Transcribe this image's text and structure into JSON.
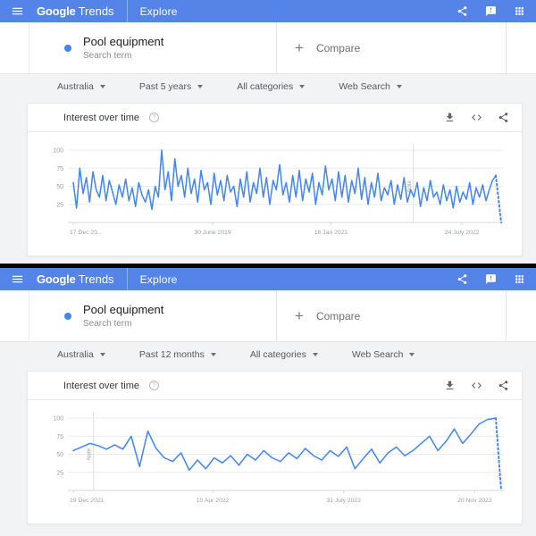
{
  "colors": {
    "header_bg": "#5584e8",
    "accent_blue": "#4285f4",
    "line": "#4285f4",
    "grid": "#e9ebee",
    "axis_line": "#d5d8db",
    "axis_text": "#9aa0a6",
    "note_line": "#dadce0"
  },
  "icons": {
    "menu": "hamburger-icon",
    "share_header": "share-icon",
    "feedback": "feedback-icon",
    "apps": "apps-grid-icon",
    "download": "download-icon",
    "embed": "embed-code-icon",
    "share_chart": "share-icon",
    "help": "help-icon",
    "dropdown": "chevron-down-icon"
  },
  "header": {
    "logo_google": "Google",
    "logo_trends": "Trends",
    "nav_label": "Explore"
  },
  "screens": [
    {
      "search_card": {
        "term": "Pool equipment",
        "term_type": "Search term",
        "plus_label": "+",
        "compare_label": "Compare"
      },
      "filters": [
        {
          "label": "Australia"
        },
        {
          "label": "Past 5 years"
        },
        {
          "label": "All categories"
        },
        {
          "label": "Web Search"
        }
      ],
      "chart": {
        "type": "line",
        "title": "Interest over time",
        "ylim": [
          0,
          100
        ],
        "y_ticks": [
          100,
          75,
          50,
          25
        ],
        "x_labels": [
          {
            "label": "17 Dec 20...",
            "pct": 0,
            "anchor": "start"
          },
          {
            "label": "30 June 2019",
            "pct": 33,
            "anchor": "middle"
          },
          {
            "label": "16 Jan 2021",
            "pct": 61,
            "anchor": "middle"
          },
          {
            "label": "24 July 2022",
            "pct": 92,
            "anchor": "middle"
          }
        ],
        "note": {
          "label": "Note",
          "pct": 80.5
        },
        "partial_end": true,
        "values": [
          55,
          20,
          75,
          40,
          62,
          28,
          70,
          45,
          35,
          65,
          30,
          58,
          42,
          25,
          52,
          35,
          60,
          30,
          48,
          22,
          55,
          38,
          28,
          45,
          18,
          50,
          35,
          100,
          45,
          70,
          30,
          88,
          50,
          65,
          35,
          75,
          40,
          60,
          28,
          72,
          45,
          55,
          25,
          68,
          38,
          58,
          30,
          65,
          42,
          50,
          22,
          60,
          35,
          70,
          28,
          55,
          40,
          75,
          35,
          62,
          25,
          58,
          45,
          80,
          38,
          55,
          28,
          65,
          35,
          72,
          30,
          60,
          42,
          68,
          25,
          55,
          38,
          78,
          45,
          60,
          30,
          70,
          35,
          65,
          28,
          58,
          40,
          75,
          32,
          62,
          25,
          55,
          35,
          68,
          30,
          48,
          38,
          58,
          25,
          52,
          32,
          62,
          28,
          45,
          35,
          55,
          22,
          48,
          30,
          58,
          35,
          42,
          25,
          52,
          30,
          45,
          20,
          50,
          28,
          42,
          32,
          55,
          25,
          48,
          35,
          52,
          30,
          45,
          58,
          65
        ]
      }
    },
    {
      "search_card": {
        "term": "Pool equipment",
        "term_type": "Search term",
        "plus_label": "+",
        "compare_label": "Compare"
      },
      "filters": [
        {
          "label": "Australia"
        },
        {
          "label": "Past 12 months"
        },
        {
          "label": "All categories"
        },
        {
          "label": "Web Search"
        }
      ],
      "chart": {
        "type": "line",
        "title": "Interest over time",
        "ylim": [
          0,
          100
        ],
        "y_ticks": [
          100,
          75,
          50,
          25
        ],
        "x_labels": [
          {
            "label": "19 Dec 2021",
            "pct": 0,
            "anchor": "start"
          },
          {
            "label": "10 Apr 2022",
            "pct": 33,
            "anchor": "middle"
          },
          {
            "label": "31 July 2022",
            "pct": 64,
            "anchor": "middle"
          },
          {
            "label": "20 Nov 2022",
            "pct": 95,
            "anchor": "middle"
          }
        ],
        "note": {
          "label": "Note",
          "pct": 4.8
        },
        "partial_end": true,
        "values": [
          55,
          60,
          65,
          62,
          57,
          63,
          57,
          75,
          33,
          82,
          58,
          45,
          40,
          52,
          28,
          42,
          30,
          45,
          38,
          48,
          35,
          50,
          42,
          55,
          45,
          40,
          52,
          44,
          58,
          48,
          42,
          55,
          47,
          60,
          30,
          44,
          57,
          38,
          52,
          60,
          48,
          55,
          65,
          75,
          55,
          68,
          85,
          65,
          78,
          92,
          98,
          100
        ]
      }
    }
  ]
}
